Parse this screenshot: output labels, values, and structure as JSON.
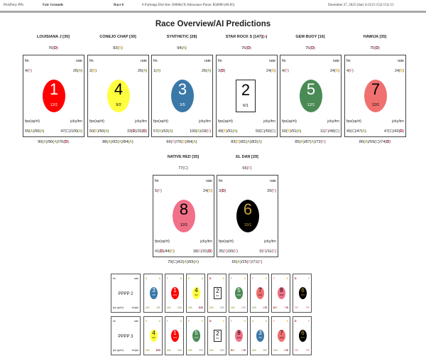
{
  "header": {
    "app": "PickPony PPs",
    "track": "Fair Grounds",
    "race": "Race 6",
    "conditions": "6 Furlongs Dirt Alw 56000n!X Allowance Purse: $56000 (60.05)",
    "datetime": "December 27, 2025 (Sat) 4:15|15:15|2:15|1:15"
  },
  "title": "Race Overview/AI Predictions",
  "labels": {
    "fin": "fin",
    "rate": "rate",
    "fps": "fps(sp/rt)",
    "jcky": "jcky/trn",
    "fps_short": "fps (sp/rt)",
    "jcky_short": "trn/jck"
  },
  "horses": [
    {
      "num": "1",
      "name": "LOUISIANA J [30]",
      "score": "76(D)",
      "fin": "4(F)",
      "rate": "26(A)",
      "fps": "55(A)/50(A)",
      "jcky": "47(C)/100(A)",
      "bottom": "90(A)/90(A)/76(D)",
      "odds": "12/1",
      "color": "#ff0000",
      "text": "#ffffff"
    },
    {
      "num": "4",
      "name": "CONEJO CHAP [30]",
      "score": "83(B)",
      "fin": "2(B)",
      "rate": "26(A)",
      "fps": "50(B)/50(A)",
      "jcky": "33(D)/33(D)",
      "bottom": "88(A)/92(A)/84(A)",
      "odds": "9/2",
      "color": "#ffff40",
      "text": "#000000"
    },
    {
      "num": "3",
      "name": "SYNTHETIC [28]",
      "score": "94(A)",
      "fin": "1(A)",
      "rate": "26(A)",
      "fps": "57(A)/52(A)",
      "jcky": "100(A)/18(F)",
      "bottom": "66(F)/70(B)/84(A)",
      "odds": "3/5",
      "color": "#3a78a8",
      "text": "#ffffff"
    },
    {
      "num": "2",
      "name": "STAR ROCK S [147](x)",
      "score": "76(D)",
      "fin": "3(D)",
      "rate": "24(B)",
      "fps": "49(B)/51(A)",
      "jcky": "50(C)/50(C)",
      "bottom": "83(B)/81(A)/82(A)",
      "odds": "6/1",
      "color": "#ffffff",
      "text": "#000000"
    },
    {
      "num": "5",
      "name": "GEM BUOY [16]",
      "score": "75(D)",
      "fin": "4(F)",
      "rate": "24(B)",
      "fps": "50(B)/51(A)",
      "jcky": "11(F)/48(C)",
      "bottom": "85(A)/87(A)/72(F)",
      "odds": "12/1",
      "color": "#4a8a55",
      "text": "#ffffff"
    },
    {
      "num": "7",
      "name": "HAWIJA [35]",
      "score": "75(D)",
      "fin": "4(F)",
      "rate": "24(B)",
      "fps": "45(C)/47(A)",
      "jcky": "47(C)/43(D)",
      "bottom": "86(A)/59(C)/74(D)",
      "odds": "12/1",
      "color": "#f07070",
      "text": "#000000"
    },
    {
      "num": "8",
      "name": "NATIVE RED [35]",
      "score": "77(C)",
      "fin": "5(F)",
      "rate": "24(B)",
      "fps": "41(D)/44(B)",
      "jcky": "18(F)/31(D)",
      "bottom": "79(C)/62(A)/65(A)",
      "odds": "12/1",
      "color": "#f07088",
      "text": "#000000"
    },
    {
      "num": "6",
      "name": "EL DAN [29]",
      "score": "66(F)",
      "fin": "3(D)",
      "rate": "20(F)",
      "fps": "35(F)/30(F)",
      "jcky": "0(F)/11(F)",
      "bottom": "65(A)/25(F)/71(F)",
      "odds": "15/1",
      "color": "#000000",
      "text": "#c8a040"
    }
  ],
  "predictions": [
    {
      "label": "PPPP 2",
      "order": [
        "3",
        "1",
        "4",
        "2",
        "5",
        "7",
        "8",
        "6"
      ]
    },
    {
      "label": "PPPP 3",
      "order": [
        "4",
        "1",
        "5",
        "2",
        "8",
        "3",
        "7",
        "6"
      ]
    }
  ]
}
